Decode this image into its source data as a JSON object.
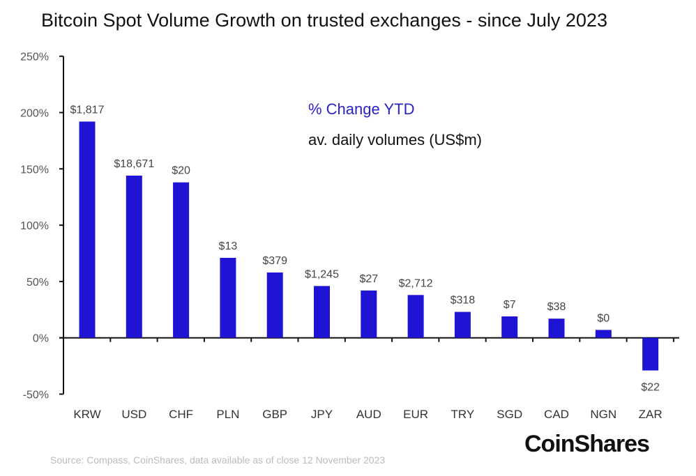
{
  "chart_data": {
    "type": "bar",
    "title": "Bitcoin Spot Volume Growth on trusted exchanges - since July 2023",
    "xlabel": "",
    "ylabel": "",
    "ylim": [
      -50,
      250
    ],
    "yticks": [
      -50,
      0,
      50,
      100,
      150,
      200,
      250
    ],
    "ytick_labels": [
      "-50%",
      "0%",
      "50%",
      "100%",
      "150%",
      "200%",
      "250%"
    ],
    "categories": [
      "KRW",
      "USD",
      "CHF",
      "PLN",
      "GBP",
      "JPY",
      "AUD",
      "EUR",
      "TRY",
      "SGD",
      "CAD",
      "NGN",
      "ZAR"
    ],
    "values": [
      192,
      144,
      138,
      71,
      58,
      46,
      42,
      38,
      23,
      19,
      17,
      7,
      -29
    ],
    "data_labels": [
      "$1,817",
      "$18,671",
      "$20",
      "$13",
      "$379",
      "$1,245",
      "$27",
      "$2,712",
      "$318",
      "$7",
      "$38",
      "$0",
      "$22"
    ],
    "legend": [
      "% Change YTD",
      "av. daily volumes (US$m)"
    ],
    "legend_position": "top-center",
    "grid": false,
    "colors": {
      "bar": "#1f14d4",
      "negative_tick": "#d04050"
    }
  },
  "source": "Source: Compass, CoinShares, data available as of close 12 November 2023",
  "logo": "CoinShares"
}
